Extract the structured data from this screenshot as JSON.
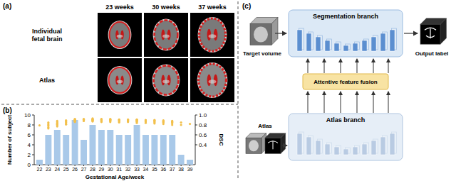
{
  "panel_a": {
    "label": "(a)",
    "columns": [
      "23 weeks",
      "30 weeks",
      "37 weeks"
    ],
    "rows": [
      "Individual fetal brain",
      "Atlas"
    ]
  },
  "panel_b": {
    "label": "(b)"
  },
  "panel_c": {
    "label": "(c)",
    "nodes": [
      {
        "label": "Target volume"
      },
      {
        "label": "Segmentation branch"
      },
      {
        "label": "Output label"
      },
      {
        "label": "Attentive feature fusion"
      },
      {
        "label": "Atlas"
      },
      {
        "label": "Atlas branch"
      }
    ]
  },
  "chart_data": {
    "type": "bar",
    "x": [
      22,
      23,
      24,
      25,
      26,
      27,
      28,
      29,
      30,
      31,
      32,
      33,
      34,
      35,
      36,
      37,
      38,
      39
    ],
    "xlim": [
      21.4,
      39.6
    ],
    "xticks": [
      22,
      23,
      24,
      25,
      26,
      27,
      28,
      29,
      30,
      31,
      32,
      33,
      34,
      35,
      36,
      37,
      38,
      39
    ],
    "ylim": [
      0,
      10
    ],
    "yticks": [
      0,
      2,
      4,
      6,
      8,
      10
    ],
    "y2lim": [
      0,
      1
    ],
    "y2ticks": [
      0.4,
      0.6,
      0.8,
      {
        "value": 1,
        "label": "1.0"
      }
    ],
    "x_label": "Gestational Age/week",
    "y_label": "Number of subject",
    "y2_label": "DSC",
    "series": [
      {
        "type": "bar",
        "color": "#a9c9e9",
        "values": [
          1,
          6,
          7,
          6,
          9,
          5,
          8,
          7,
          7,
          6,
          6,
          8,
          6,
          6,
          6,
          6,
          2,
          1
        ]
      },
      {
        "type": "scatter",
        "axis": "y2",
        "color": "#f2c04c",
        "marker": "circle",
        "x": [
          22,
          23,
          23,
          23,
          23,
          23,
          23,
          24,
          24,
          24,
          24,
          24,
          24,
          24,
          25,
          25,
          25,
          25,
          25,
          25,
          26,
          26,
          26,
          26,
          26,
          26,
          26,
          26,
          26,
          27,
          27,
          27,
          27,
          27,
          28,
          28,
          28,
          28,
          28,
          28,
          28,
          28,
          29,
          29,
          29,
          29,
          29,
          29,
          29,
          30,
          30,
          30,
          30,
          30,
          30,
          30,
          31,
          31,
          31,
          31,
          31,
          31,
          32,
          32,
          32,
          32,
          32,
          32,
          33,
          33,
          33,
          33,
          33,
          33,
          33,
          33,
          34,
          34,
          34,
          34,
          34,
          34,
          35,
          35,
          35,
          35,
          35,
          35,
          36,
          36,
          36,
          36,
          36,
          36,
          37,
          37,
          37,
          37,
          37,
          37,
          38,
          38,
          39
        ],
        "values": [
          0.79,
          0.85,
          0.82,
          0.8,
          0.78,
          0.75,
          0.73,
          0.88,
          0.86,
          0.84,
          0.83,
          0.81,
          0.79,
          0.77,
          0.89,
          0.88,
          0.87,
          0.85,
          0.83,
          0.81,
          0.92,
          0.91,
          0.9,
          0.9,
          0.89,
          0.88,
          0.88,
          0.87,
          0.86,
          0.92,
          0.91,
          0.9,
          0.89,
          0.88,
          0.93,
          0.92,
          0.91,
          0.9,
          0.9,
          0.89,
          0.88,
          0.87,
          0.92,
          0.91,
          0.9,
          0.89,
          0.88,
          0.87,
          0.86,
          0.92,
          0.91,
          0.9,
          0.9,
          0.89,
          0.88,
          0.86,
          0.91,
          0.9,
          0.89,
          0.88,
          0.87,
          0.85,
          0.91,
          0.9,
          0.89,
          0.88,
          0.87,
          0.86,
          0.91,
          0.9,
          0.9,
          0.89,
          0.88,
          0.87,
          0.86,
          0.84,
          0.9,
          0.89,
          0.88,
          0.87,
          0.86,
          0.84,
          0.9,
          0.89,
          0.88,
          0.87,
          0.85,
          0.83,
          0.89,
          0.88,
          0.87,
          0.86,
          0.85,
          0.82,
          0.88,
          0.87,
          0.86,
          0.85,
          0.83,
          0.8,
          0.85,
          0.8,
          0.82
        ]
      }
    ]
  }
}
